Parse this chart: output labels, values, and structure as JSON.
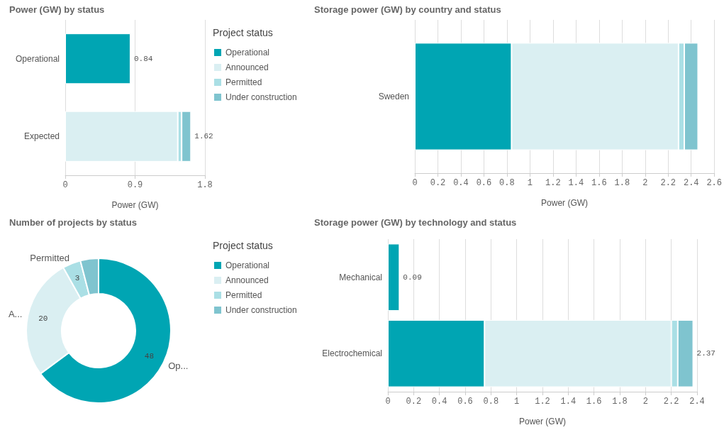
{
  "chart_data": [
    {
      "type": "bar",
      "title": "Power (GW) by status",
      "orientation": "horizontal",
      "stacked": true,
      "categories": [
        "Operational",
        "Expected"
      ],
      "xlabel": "Power (GW)",
      "xlim": [
        0,
        1.8
      ],
      "xticks": [
        0,
        0.9,
        1.8
      ],
      "grid": "x",
      "legend": "right",
      "legend_title": "Project status",
      "totals": [
        "0.84",
        "1.62"
      ],
      "series": [
        {
          "name": "Operational",
          "color": "#00a5b3",
          "values": [
            0.84,
            null
          ]
        },
        {
          "name": "Announced",
          "color": "#daeff2",
          "values": [
            null,
            1.45
          ]
        },
        {
          "name": "Permitted",
          "color": "#aadfe5",
          "values": [
            null,
            0.05
          ]
        },
        {
          "name": "Under construction",
          "color": "#7fc4cf",
          "values": [
            null,
            0.12
          ]
        }
      ]
    },
    {
      "type": "bar",
      "title": "Storage power (GW) by country and status",
      "orientation": "horizontal",
      "stacked": true,
      "categories": [
        "Sweden"
      ],
      "xlabel": "Power (GW)",
      "xlim": [
        0,
        2.6
      ],
      "xticks": [
        0,
        0.2,
        0.4,
        0.6,
        0.8,
        1,
        1.2,
        1.4,
        1.6,
        1.8,
        2,
        2.2,
        2.4,
        2.6
      ],
      "grid": "x",
      "series": [
        {
          "color": "#00a5b3",
          "values": [
            0.84
          ]
        },
        {
          "color": "#daeff2",
          "values": [
            1.45
          ]
        },
        {
          "color": "#aadfe5",
          "values": [
            0.05
          ]
        },
        {
          "color": "#7fc4cf",
          "values": [
            0.12
          ]
        }
      ]
    },
    {
      "type": "donut",
      "title": "Number of projects by status",
      "categories": [
        "Operational",
        "Announced",
        "Permitted",
        "Under construction"
      ],
      "values": [
        48,
        20,
        3,
        3
      ],
      "colors": [
        "#00a5b3",
        "#daeff2",
        "#aadfe5",
        "#7fc4cf"
      ],
      "value_labels": [
        "48",
        "20",
        "3",
        null
      ],
      "legend": "right",
      "legend_title": "Project status",
      "annotations": [
        {
          "text": "Op...",
          "x": "Operational"
        },
        {
          "text": "A...",
          "x": "Announced"
        },
        {
          "text": "Permitted",
          "x": "Permitted"
        }
      ]
    },
    {
      "type": "bar",
      "title": "Storage power (GW) by technology and status",
      "orientation": "horizontal",
      "stacked": true,
      "categories": [
        "Mechanical",
        "Electrochemical"
      ],
      "xlabel": "Power (GW)",
      "xlim": [
        0,
        2.4
      ],
      "xticks": [
        0,
        0.2,
        0.4,
        0.6,
        0.8,
        1,
        1.2,
        1.4,
        1.6,
        1.8,
        2,
        2.2,
        2.4
      ],
      "grid": "x",
      "totals": [
        "0.09",
        "2.37"
      ],
      "series": [
        {
          "color": "#00a5b3",
          "values": [
            0.09,
            0.75
          ]
        },
        {
          "color": "#daeff2",
          "values": [
            null,
            1.45
          ]
        },
        {
          "color": "#aadfe5",
          "values": [
            null,
            0.05
          ]
        },
        {
          "color": "#7fc4cf",
          "values": [
            null,
            0.12
          ]
        }
      ]
    }
  ]
}
